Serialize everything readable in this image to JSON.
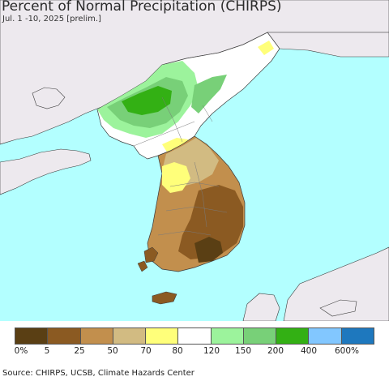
{
  "title": "Percent of Normal Precipitation (CHIRPS)",
  "subtitle": "Jul. 1 -10, 2025 [prelim.]",
  "colors": {
    "ocean": "#b3ffff",
    "land_outside": "#ede9ee",
    "border": "#3a3a3a"
  },
  "legend": {
    "swatches": [
      "#5a3f14",
      "#8b5a22",
      "#c28f4d",
      "#d2bb82",
      "#ffff7a",
      "#ffffff",
      "#9cf39c",
      "#78d078",
      "#33b014",
      "#82c7ff",
      "#1e78be"
    ],
    "labels": [
      "0%",
      "5",
      "25",
      "50",
      "70",
      "80",
      "120",
      "150",
      "200",
      "400",
      "600%"
    ]
  },
  "source": "Source: CHIRPS, UCSB, Climate Hazards Center"
}
